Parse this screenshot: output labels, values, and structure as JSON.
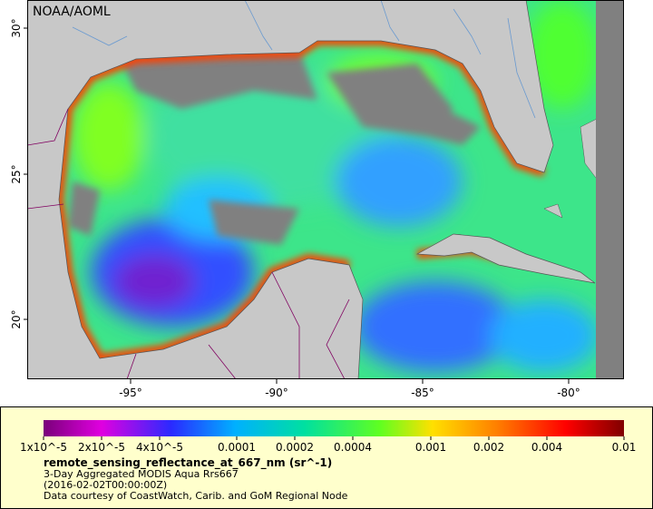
{
  "map": {
    "credit": "NOAA/AOML",
    "lat_labels": [
      "30°",
      "25°",
      "20°"
    ],
    "lon_labels": [
      "-95°",
      "-90°",
      "-85°",
      "-80°"
    ]
  },
  "legend": {
    "ticks": [
      "1x10^-5",
      "2x10^-5",
      "4x10^-5",
      "0.0001",
      "0.0002",
      "0.0004",
      "0.001",
      "0.002",
      "0.004",
      "0.01"
    ],
    "title": "remote_sensing_reflectance_at_667_nm (sr^-1)",
    "lines": [
      "3-Day Aggregated MODIS Aqua Rrs667",
      "(2016-02-02T00:00:00Z)",
      "Data courtesy of CoastWatch, Carib. and GoM Regional Node"
    ]
  }
}
